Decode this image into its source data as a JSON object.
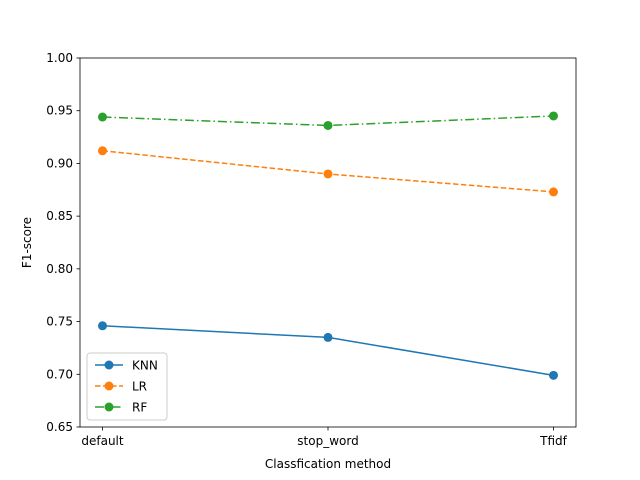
{
  "chart_data": {
    "type": "line",
    "title": "",
    "xlabel": "Classfication method",
    "ylabel": "F1-score",
    "categories": [
      "default",
      "stop_word",
      "Tfidf"
    ],
    "ylim": [
      0.65,
      1.0
    ],
    "yticks": [
      "0.65",
      "0.70",
      "0.75",
      "0.80",
      "0.85",
      "0.90",
      "0.95",
      "1.00"
    ],
    "grid": false,
    "legend_position": "lower-left",
    "series": [
      {
        "name": "KNN",
        "values": [
          0.746,
          0.735,
          0.699
        ],
        "color": "#1f77b4",
        "linestyle": "solid",
        "marker": "circle"
      },
      {
        "name": "LR",
        "values": [
          0.912,
          0.89,
          0.873
        ],
        "color": "#ff7f0e",
        "linestyle": "dashed",
        "marker": "circle"
      },
      {
        "name": "RF",
        "values": [
          0.944,
          0.936,
          0.945
        ],
        "color": "#2ca02c",
        "linestyle": "dashdot",
        "marker": "circle"
      }
    ]
  }
}
